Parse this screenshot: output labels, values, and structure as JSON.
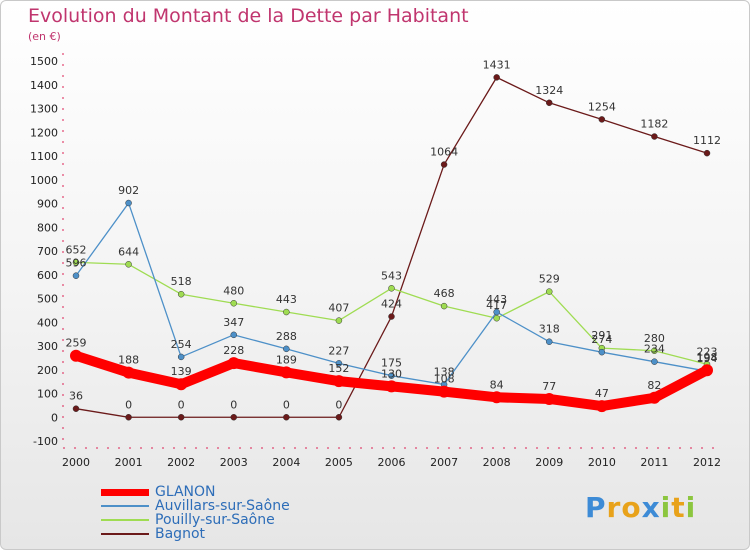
{
  "chart_data": {
    "type": "line",
    "title": "Evolution du Montant de la Dette par Habitant",
    "subtitle": "(en €)",
    "x": [
      "2000",
      "2001",
      "2002",
      "2003",
      "2004",
      "2005",
      "2006",
      "2007",
      "2008",
      "2009",
      "2010",
      "2011",
      "2012"
    ],
    "ylim": [
      -100,
      1500
    ],
    "yticks": [
      -100,
      0,
      100,
      200,
      300,
      400,
      500,
      600,
      700,
      800,
      900,
      1000,
      1100,
      1200,
      1300,
      1400,
      1500
    ],
    "grid": false,
    "legend_position": "bottom-left",
    "series": [
      {
        "name": "Bagnot",
        "color": "#6b1a1a",
        "values": [
          36,
          0,
          0,
          0,
          0,
          0,
          424,
          1064,
          1431,
          1324,
          1254,
          1182,
          1112
        ]
      },
      {
        "name": "Pouilly-sur-Saône",
        "color": "#9fdc52",
        "values": [
          652,
          644,
          518,
          480,
          443,
          407,
          543,
          468,
          417,
          529,
          291,
          280,
          223
        ]
      },
      {
        "name": "Auvillars-sur-Saône",
        "color": "#4d90c8",
        "values": [
          596,
          902,
          254,
          347,
          288,
          227,
          175,
          138,
          443,
          318,
          274,
          234,
          194
        ]
      },
      {
        "name": "GLANON",
        "color": "#ff0000",
        "values": [
          259,
          188,
          139,
          228,
          189,
          152,
          130,
          108,
          84,
          77,
          47,
          82,
          198
        ]
      }
    ]
  },
  "legend": [
    {
      "name": "GLANON",
      "color": "#ff0000"
    },
    {
      "name": "Auvillars-sur-Saône",
      "color": "#4d90c8"
    },
    {
      "name": "Pouilly-sur-Saône",
      "color": "#9fdc52"
    },
    {
      "name": "Bagnot",
      "color": "#6b1a1a"
    }
  ],
  "brand": {
    "letters": [
      "P",
      "r",
      "o",
      "x",
      "i",
      "t",
      "i"
    ],
    "colors": [
      "#3d8bd6",
      "#e8a21a",
      "#e8a21a",
      "#3d8bd6",
      "#8cc63f",
      "#e8a21a",
      "#8cc63f"
    ]
  }
}
